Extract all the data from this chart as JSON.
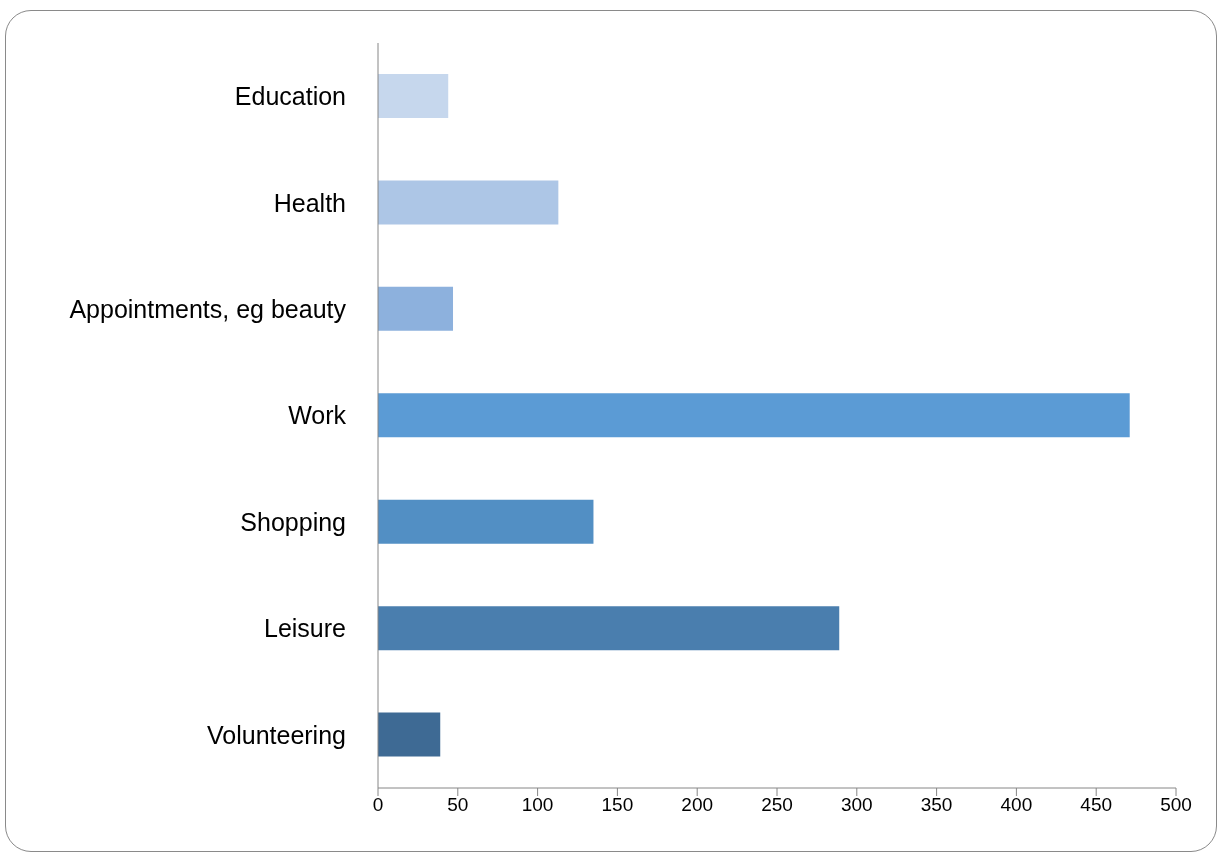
{
  "chart_data": {
    "type": "bar",
    "orientation": "horizontal",
    "categories": [
      "Education",
      "Health",
      "Appointments, eg beauty",
      "Work",
      "Shopping",
      "Leisure",
      "Volunteering"
    ],
    "values": [
      44,
      113,
      47,
      471,
      135,
      289,
      39
    ],
    "colors": [
      "#c6d7ed",
      "#adc6e6",
      "#8db1dd",
      "#5b9bd5",
      "#528fc4",
      "#4a7eae",
      "#3e6a94"
    ],
    "xlim": [
      0,
      500
    ],
    "xticks": [
      0,
      50,
      100,
      150,
      200,
      250,
      300,
      350,
      400,
      450,
      500
    ],
    "grid": false
  }
}
